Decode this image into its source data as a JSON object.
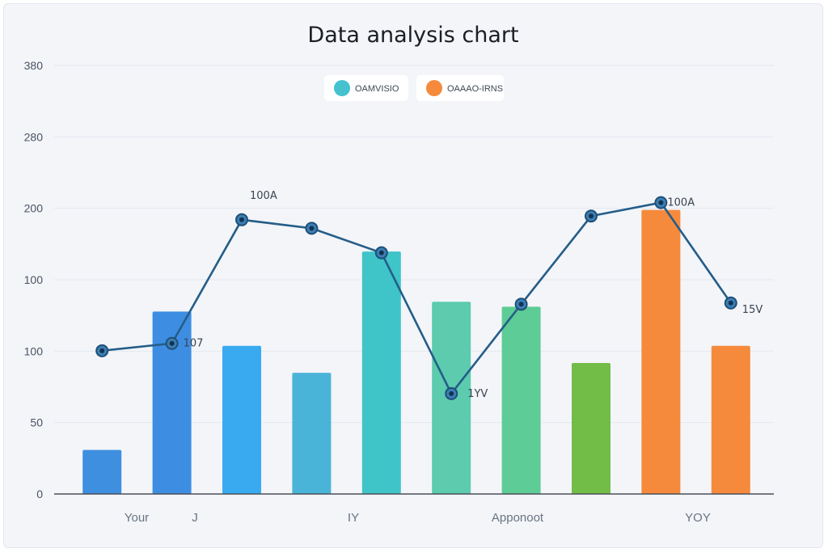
{
  "chart_data": {
    "type": "bar",
    "title": "Data analysis chart",
    "y_tick_labels": [
      "0",
      "50",
      "100",
      "100",
      "200",
      "280",
      "380"
    ],
    "ylim": [
      0,
      350
    ],
    "grid": true,
    "legend_position": "top-center",
    "legend": [
      {
        "name": "OAMVISIO",
        "color": "#45c1cf"
      },
      {
        "name": "OAAAO-IRNS",
        "color": "#f58a3c"
      }
    ],
    "x_tick_labels": [
      "Your",
      "J",
      "IY",
      "Apponoot",
      "YOY"
    ],
    "bars": [
      {
        "value": 36,
        "color": "#3f8fe0"
      },
      {
        "value": 149,
        "color": "#3d8ee2"
      },
      {
        "value": 121,
        "color": "#39aaf0"
      },
      {
        "value": 99,
        "color": "#4ab4d8"
      },
      {
        "value": 198,
        "color": "#3fc4c8"
      },
      {
        "value": 157,
        "color": "#5ccbae"
      },
      {
        "value": 153,
        "color": "#5ecc96"
      },
      {
        "value": 107,
        "color": "#72bc48"
      },
      {
        "value": 232,
        "color": "#f58a3c"
      },
      {
        "value": 121,
        "color": "#f58a3c"
      }
    ],
    "line": {
      "color": "#255d88",
      "values": [
        117,
        123,
        224,
        217,
        197,
        82,
        155,
        227,
        238,
        156
      ]
    },
    "data_labels": [
      {
        "index": 1,
        "text": "107"
      },
      {
        "index": 2,
        "text": "100A"
      },
      {
        "index": 5,
        "text": "1YV"
      },
      {
        "index": 8,
        "text": "100A"
      },
      {
        "index": 9,
        "text": "15V"
      }
    ]
  }
}
